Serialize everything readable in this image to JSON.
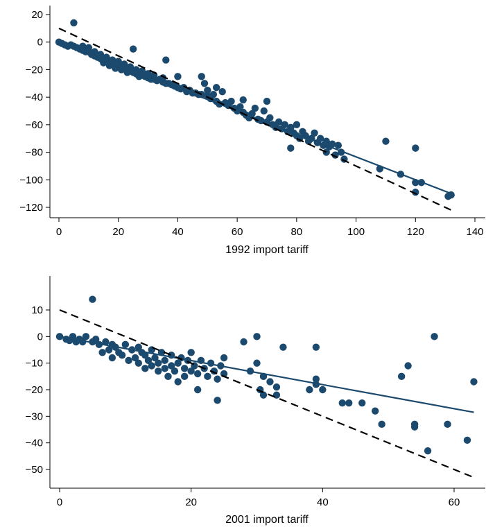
{
  "colors": {
    "points": "#1b4a6e",
    "fit_line": "#1b4a6e",
    "reference_line": "#000000"
  },
  "chart_data": [
    {
      "type": "scatter",
      "title": "",
      "xlabel": "1992 import tariff",
      "ylabel": "",
      "xlim": [
        -2,
        142
      ],
      "ylim": [
        -127,
        24
      ],
      "xticks": [
        0,
        20,
        40,
        60,
        80,
        100,
        120,
        140
      ],
      "yticks": [
        20,
        0,
        -20,
        -40,
        -60,
        -80,
        -100,
        -120
      ],
      "xtick_labels": [
        "0",
        "20",
        "40",
        "60",
        "80",
        "100",
        "120",
        "140"
      ],
      "ytick_labels": [
        "20",
        "0",
        "−20",
        "−40",
        "−60",
        "−80",
        "−100",
        "−120"
      ],
      "grid": false,
      "legend": "none",
      "lines": [
        {
          "style": "solid",
          "x": [
            0,
            132
          ],
          "y": [
            0,
            -110
          ]
        },
        {
          "style": "dashed",
          "x": [
            0,
            132
          ],
          "y": [
            10,
            -122
          ]
        }
      ],
      "points": [
        [
          0,
          0
        ],
        [
          1,
          -1
        ],
        [
          2,
          -2
        ],
        [
          3,
          -3
        ],
        [
          4,
          -2
        ],
        [
          5,
          -3
        ],
        [
          5,
          14
        ],
        [
          6,
          -4
        ],
        [
          7,
          -5
        ],
        [
          8,
          -6
        ],
        [
          8,
          -3
        ],
        [
          9,
          -7
        ],
        [
          10,
          -7
        ],
        [
          10,
          -4
        ],
        [
          11,
          -9
        ],
        [
          12,
          -10
        ],
        [
          12,
          -7
        ],
        [
          13,
          -11
        ],
        [
          14,
          -12
        ],
        [
          14,
          -9
        ],
        [
          15,
          -12
        ],
        [
          15,
          -15
        ],
        [
          16,
          -14
        ],
        [
          16,
          -11
        ],
        [
          17,
          -14
        ],
        [
          17,
          -17
        ],
        [
          18,
          -15
        ],
        [
          18,
          -13
        ],
        [
          19,
          -16
        ],
        [
          19,
          -19
        ],
        [
          20,
          -17
        ],
        [
          20,
          -14
        ],
        [
          21,
          -18
        ],
        [
          21,
          -20
        ],
        [
          22,
          -19
        ],
        [
          22,
          -16
        ],
        [
          23,
          -20
        ],
        [
          23,
          -22
        ],
        [
          24,
          -21
        ],
        [
          24,
          -18
        ],
        [
          25,
          -22
        ],
        [
          25,
          -5
        ],
        [
          26,
          -23
        ],
        [
          26,
          -20
        ],
        [
          27,
          -23
        ],
        [
          27,
          -25
        ],
        [
          28,
          -24
        ],
        [
          28,
          -21
        ],
        [
          29,
          -25
        ],
        [
          30,
          -26
        ],
        [
          30,
          -23
        ],
        [
          31,
          -27
        ],
        [
          32,
          -27
        ],
        [
          32,
          -24
        ],
        [
          33,
          -28
        ],
        [
          34,
          -27
        ],
        [
          35,
          -29
        ],
        [
          35,
          -26
        ],
        [
          36,
          -13
        ],
        [
          36,
          -30
        ],
        [
          37,
          -30
        ],
        [
          38,
          -31
        ],
        [
          39,
          -32
        ],
        [
          40,
          -25
        ],
        [
          40,
          -33
        ],
        [
          41,
          -34
        ],
        [
          42,
          -33
        ],
        [
          43,
          -36
        ],
        [
          44,
          -35
        ],
        [
          45,
          -37
        ],
        [
          46,
          -37
        ],
        [
          47,
          -38
        ],
        [
          48,
          -25
        ],
        [
          48,
          -38
        ],
        [
          49,
          -30
        ],
        [
          50,
          -39
        ],
        [
          50,
          -35
        ],
        [
          51,
          -41
        ],
        [
          52,
          -38
        ],
        [
          53,
          -33
        ],
        [
          53,
          -43
        ],
        [
          54,
          -45
        ],
        [
          55,
          -36
        ],
        [
          56,
          -44
        ],
        [
          57,
          -46
        ],
        [
          58,
          -43
        ],
        [
          59,
          -48
        ],
        [
          60,
          -50
        ],
        [
          61,
          -47
        ],
        [
          62,
          -42
        ],
        [
          62,
          -51
        ],
        [
          63,
          -53
        ],
        [
          64,
          -55
        ],
        [
          65,
          -52
        ],
        [
          66,
          -48
        ],
        [
          67,
          -56
        ],
        [
          68,
          -57
        ],
        [
          69,
          -50
        ],
        [
          70,
          -58
        ],
        [
          70,
          -43
        ],
        [
          71,
          -55
        ],
        [
          72,
          -60
        ],
        [
          73,
          -62
        ],
        [
          74,
          -58
        ],
        [
          75,
          -63
        ],
        [
          76,
          -60
        ],
        [
          77,
          -65
        ],
        [
          78,
          -62
        ],
        [
          78,
          -77
        ],
        [
          79,
          -66
        ],
        [
          80,
          -68
        ],
        [
          80,
          -60
        ],
        [
          81,
          -70
        ],
        [
          82,
          -65
        ],
        [
          83,
          -68
        ],
        [
          84,
          -72
        ],
        [
          85,
          -70
        ],
        [
          86,
          -66
        ],
        [
          87,
          -73
        ],
        [
          88,
          -70
        ],
        [
          89,
          -75
        ],
        [
          90,
          -72
        ],
        [
          90,
          -80
        ],
        [
          91,
          -76
        ],
        [
          92,
          -74
        ],
        [
          93,
          -82
        ],
        [
          94,
          -75
        ],
        [
          95,
          -80
        ],
        [
          96,
          -85
        ],
        [
          108,
          -92
        ],
        [
          110,
          -72
        ],
        [
          115,
          -96
        ],
        [
          120,
          -77
        ],
        [
          120,
          -102
        ],
        [
          120,
          -109
        ],
        [
          122,
          -102
        ],
        [
          131,
          -112
        ],
        [
          132,
          -111
        ]
      ]
    },
    {
      "type": "scatter",
      "title": "",
      "xlabel": "2001 import tariff",
      "ylabel": "",
      "xlim": [
        -1,
        64
      ],
      "ylim": [
        -56,
        22
      ],
      "xticks": [
        0,
        20,
        40,
        60
      ],
      "yticks": [
        10,
        0,
        -10,
        -20,
        -30,
        -40,
        -50
      ],
      "xtick_labels": [
        "0",
        "20",
        "40",
        "60"
      ],
      "ytick_labels": [
        "10",
        "0",
        "−10",
        "−20",
        "−30",
        "−40",
        "−50"
      ],
      "grid": false,
      "legend": "none",
      "lines": [
        {
          "style": "solid",
          "x": [
            0,
            63
          ],
          "y": [
            0,
            -28.5
          ]
        },
        {
          "style": "dashed",
          "x": [
            0,
            63
          ],
          "y": [
            10,
            -53
          ]
        }
      ],
      "points": [
        [
          0,
          0
        ],
        [
          1,
          -1
        ],
        [
          1.5,
          -1.5
        ],
        [
          2,
          0
        ],
        [
          2.5,
          -2
        ],
        [
          3,
          -1
        ],
        [
          3.5,
          -2
        ],
        [
          4,
          0
        ],
        [
          5,
          14
        ],
        [
          5,
          -2
        ],
        [
          5.5,
          -1
        ],
        [
          6,
          -3
        ],
        [
          6.5,
          -6
        ],
        [
          7,
          -2
        ],
        [
          7.5,
          -5
        ],
        [
          8,
          -8
        ],
        [
          8,
          -3
        ],
        [
          8.5,
          -4
        ],
        [
          9,
          -6
        ],
        [
          9.5,
          -7
        ],
        [
          10,
          -3
        ],
        [
          10.5,
          -9
        ],
        [
          11,
          -5
        ],
        [
          11.5,
          -8
        ],
        [
          12,
          -10
        ],
        [
          12,
          -4
        ],
        [
          12.5,
          -6
        ],
        [
          13,
          -12
        ],
        [
          13,
          -7
        ],
        [
          13.5,
          -9
        ],
        [
          14,
          -11
        ],
        [
          14,
          -5
        ],
        [
          14.5,
          -8
        ],
        [
          15,
          -13
        ],
        [
          15,
          -10
        ],
        [
          15.5,
          -6
        ],
        [
          16,
          -12
        ],
        [
          16,
          -9
        ],
        [
          16.5,
          -15
        ],
        [
          17,
          -11
        ],
        [
          17,
          -7
        ],
        [
          17.5,
          -13
        ],
        [
          18,
          -10
        ],
        [
          18,
          -17
        ],
        [
          18.5,
          -8
        ],
        [
          19,
          -12
        ],
        [
          19,
          -15
        ],
        [
          19.5,
          -9
        ],
        [
          20,
          -13
        ],
        [
          20,
          -6
        ],
        [
          20.5,
          -11
        ],
        [
          21,
          -14
        ],
        [
          21,
          -20
        ],
        [
          21.5,
          -9
        ],
        [
          22,
          -12
        ],
        [
          22.5,
          -15
        ],
        [
          23,
          -10
        ],
        [
          23.5,
          -13
        ],
        [
          24,
          -24
        ],
        [
          24,
          -16
        ],
        [
          24.5,
          -11
        ],
        [
          25,
          -14
        ],
        [
          25,
          -8
        ],
        [
          28,
          -2
        ],
        [
          29,
          -13
        ],
        [
          30,
          0
        ],
        [
          30,
          -10
        ],
        [
          30.5,
          -20
        ],
        [
          31,
          -15
        ],
        [
          31,
          -22
        ],
        [
          32,
          -17
        ],
        [
          33,
          -19
        ],
        [
          33,
          -22
        ],
        [
          34,
          -4
        ],
        [
          38,
          -20
        ],
        [
          39,
          -16
        ],
        [
          39,
          -4
        ],
        [
          39,
          -18
        ],
        [
          40,
          -20
        ],
        [
          43,
          -25
        ],
        [
          44,
          -25
        ],
        [
          46,
          -25
        ],
        [
          48,
          -28
        ],
        [
          49,
          -33
        ],
        [
          52,
          -15
        ],
        [
          53,
          -11
        ],
        [
          54,
          -34
        ],
        [
          54,
          -33
        ],
        [
          56,
          -43
        ],
        [
          57,
          0
        ],
        [
          59,
          -33
        ],
        [
          62,
          -39
        ],
        [
          63,
          -17
        ]
      ]
    }
  ]
}
